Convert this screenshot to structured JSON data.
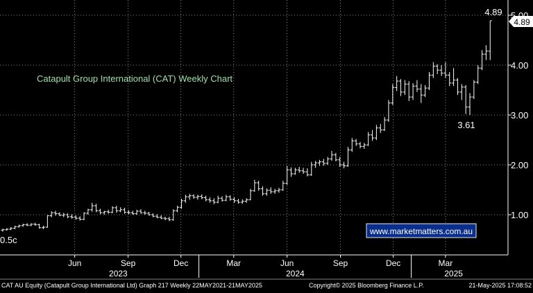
{
  "chart_data": {
    "type": "ohlc",
    "title": "Catapult Group International (CAT) Weekly Chart",
    "y_ticks": [
      "1.00",
      "2.00",
      "3.00",
      "4.00",
      "5.00"
    ],
    "y_tick_values": [
      1,
      2,
      3,
      4,
      5
    ],
    "ylim": [
      0.5,
      5.0
    ],
    "x_months": [
      {
        "label": "Jun",
        "date": "2023-06-01"
      },
      {
        "label": "Sep",
        "date": "2023-09-01"
      },
      {
        "label": "Dec",
        "date": "2023-12-01"
      },
      {
        "label": "Mar",
        "date": "2024-03-01"
      },
      {
        "label": "Jun",
        "date": "2024-06-01"
      },
      {
        "label": "Sep",
        "date": "2024-09-01"
      },
      {
        "label": "Dec",
        "date": "2024-12-01"
      },
      {
        "label": "Mar",
        "date": "2025-03-01"
      }
    ],
    "x_years": [
      {
        "label": "2023",
        "date": "2023-08-15"
      },
      {
        "label": "2024",
        "date": "2024-06-15"
      },
      {
        "label": "2025",
        "date": "2025-03-15"
      }
    ],
    "x_range": [
      "2023-01-28",
      "2025-06-12"
    ],
    "year_dividers": [
      "2024-01-01",
      "2025-01-01"
    ],
    "bar_color": "#ffffff",
    "grid": true,
    "grid_color": "#b0b0b0",
    "price_tag": "4.89",
    "series": [
      {
        "date": "2023-01-28",
        "o": 0.69,
        "h": 0.72,
        "l": 0.66,
        "c": 0.7
      },
      {
        "date": "2023-02-04",
        "o": 0.7,
        "h": 0.73,
        "l": 0.68,
        "c": 0.71
      },
      {
        "date": "2023-02-11",
        "o": 0.71,
        "h": 0.75,
        "l": 0.69,
        "c": 0.73
      },
      {
        "date": "2023-02-18",
        "o": 0.73,
        "h": 0.78,
        "l": 0.71,
        "c": 0.76
      },
      {
        "date": "2023-02-25",
        "o": 0.76,
        "h": 0.8,
        "l": 0.74,
        "c": 0.78
      },
      {
        "date": "2023-03-04",
        "o": 0.78,
        "h": 0.82,
        "l": 0.76,
        "c": 0.8
      },
      {
        "date": "2023-03-11",
        "o": 0.8,
        "h": 0.83,
        "l": 0.77,
        "c": 0.79
      },
      {
        "date": "2023-03-18",
        "o": 0.79,
        "h": 0.83,
        "l": 0.77,
        "c": 0.81
      },
      {
        "date": "2023-03-25",
        "o": 0.81,
        "h": 0.84,
        "l": 0.78,
        "c": 0.8
      },
      {
        "date": "2023-04-01",
        "o": 0.8,
        "h": 0.82,
        "l": 0.72,
        "c": 0.74
      },
      {
        "date": "2023-04-08",
        "o": 0.74,
        "h": 0.78,
        "l": 0.71,
        "c": 0.75
      },
      {
        "date": "2023-04-15",
        "o": 0.75,
        "h": 0.99,
        "l": 0.74,
        "c": 0.98
      },
      {
        "date": "2023-04-22",
        "o": 0.98,
        "h": 1.07,
        "l": 0.95,
        "c": 1.04
      },
      {
        "date": "2023-04-29",
        "o": 1.04,
        "h": 1.08,
        "l": 0.98,
        "c": 1.02
      },
      {
        "date": "2023-05-06",
        "o": 1.02,
        "h": 1.05,
        "l": 0.97,
        "c": 0.99
      },
      {
        "date": "2023-05-13",
        "o": 0.99,
        "h": 1.04,
        "l": 0.95,
        "c": 1.0
      },
      {
        "date": "2023-05-20",
        "o": 1.0,
        "h": 1.03,
        "l": 0.93,
        "c": 0.96
      },
      {
        "date": "2023-05-27",
        "o": 0.96,
        "h": 1.01,
        "l": 0.92,
        "c": 0.95
      },
      {
        "date": "2023-06-03",
        "o": 0.95,
        "h": 0.99,
        "l": 0.9,
        "c": 0.93
      },
      {
        "date": "2023-06-10",
        "o": 0.93,
        "h": 0.97,
        "l": 0.88,
        "c": 0.91
      },
      {
        "date": "2023-06-17",
        "o": 0.91,
        "h": 1.05,
        "l": 0.89,
        "c": 1.03
      },
      {
        "date": "2023-06-24",
        "o": 1.03,
        "h": 1.12,
        "l": 1.0,
        "c": 1.1
      },
      {
        "date": "2023-07-01",
        "o": 1.1,
        "h": 1.24,
        "l": 1.06,
        "c": 1.18
      },
      {
        "date": "2023-07-08",
        "o": 1.18,
        "h": 1.22,
        "l": 1.05,
        "c": 1.08
      },
      {
        "date": "2023-07-15",
        "o": 1.08,
        "h": 1.12,
        "l": 1.01,
        "c": 1.04
      },
      {
        "date": "2023-07-22",
        "o": 1.04,
        "h": 1.08,
        "l": 1.0,
        "c": 1.06
      },
      {
        "date": "2023-07-29",
        "o": 1.06,
        "h": 1.1,
        "l": 1.02,
        "c": 1.05
      },
      {
        "date": "2023-08-05",
        "o": 1.05,
        "h": 1.17,
        "l": 1.03,
        "c": 1.14
      },
      {
        "date": "2023-08-12",
        "o": 1.14,
        "h": 1.18,
        "l": 1.04,
        "c": 1.08
      },
      {
        "date": "2023-08-19",
        "o": 1.08,
        "h": 1.15,
        "l": 1.05,
        "c": 1.1
      },
      {
        "date": "2023-08-26",
        "o": 1.1,
        "h": 1.14,
        "l": 1.02,
        "c": 1.05
      },
      {
        "date": "2023-09-02",
        "o": 1.05,
        "h": 1.09,
        "l": 1.01,
        "c": 1.04
      },
      {
        "date": "2023-09-09",
        "o": 1.04,
        "h": 1.08,
        "l": 1.0,
        "c": 1.02
      },
      {
        "date": "2023-09-16",
        "o": 1.02,
        "h": 1.1,
        "l": 1.0,
        "c": 1.07
      },
      {
        "date": "2023-09-23",
        "o": 1.07,
        "h": 1.11,
        "l": 1.02,
        "c": 1.04
      },
      {
        "date": "2023-09-30",
        "o": 1.04,
        "h": 1.08,
        "l": 1.0,
        "c": 1.03
      },
      {
        "date": "2023-10-07",
        "o": 1.03,
        "h": 1.06,
        "l": 0.98,
        "c": 1.0
      },
      {
        "date": "2023-10-14",
        "o": 1.0,
        "h": 1.03,
        "l": 0.95,
        "c": 0.97
      },
      {
        "date": "2023-10-21",
        "o": 0.97,
        "h": 1.01,
        "l": 0.93,
        "c": 0.95
      },
      {
        "date": "2023-10-28",
        "o": 0.95,
        "h": 0.99,
        "l": 0.91,
        "c": 0.93
      },
      {
        "date": "2023-11-04",
        "o": 0.93,
        "h": 0.96,
        "l": 0.89,
        "c": 0.92
      },
      {
        "date": "2023-11-11",
        "o": 0.92,
        "h": 0.96,
        "l": 0.87,
        "c": 0.9
      },
      {
        "date": "2023-11-18",
        "o": 0.9,
        "h": 1.11,
        "l": 0.88,
        "c": 1.08
      },
      {
        "date": "2023-11-25",
        "o": 1.08,
        "h": 1.18,
        "l": 1.05,
        "c": 1.15
      },
      {
        "date": "2023-12-02",
        "o": 1.15,
        "h": 1.32,
        "l": 1.12,
        "c": 1.28
      },
      {
        "date": "2023-12-09",
        "o": 1.28,
        "h": 1.4,
        "l": 1.24,
        "c": 1.36
      },
      {
        "date": "2023-12-16",
        "o": 1.36,
        "h": 1.42,
        "l": 1.3,
        "c": 1.38
      },
      {
        "date": "2023-12-23",
        "o": 1.38,
        "h": 1.41,
        "l": 1.32,
        "c": 1.35
      },
      {
        "date": "2023-12-30",
        "o": 1.35,
        "h": 1.4,
        "l": 1.3,
        "c": 1.37
      },
      {
        "date": "2024-01-06",
        "o": 1.37,
        "h": 1.41,
        "l": 1.31,
        "c": 1.34
      },
      {
        "date": "2024-01-13",
        "o": 1.34,
        "h": 1.38,
        "l": 1.27,
        "c": 1.3
      },
      {
        "date": "2024-01-20",
        "o": 1.3,
        "h": 1.35,
        "l": 1.24,
        "c": 1.28
      },
      {
        "date": "2024-01-27",
        "o": 1.28,
        "h": 1.33,
        "l": 1.21,
        "c": 1.25
      },
      {
        "date": "2024-02-03",
        "o": 1.25,
        "h": 1.38,
        "l": 1.23,
        "c": 1.33
      },
      {
        "date": "2024-02-10",
        "o": 1.33,
        "h": 1.37,
        "l": 1.26,
        "c": 1.29
      },
      {
        "date": "2024-02-17",
        "o": 1.29,
        "h": 1.4,
        "l": 1.27,
        "c": 1.36
      },
      {
        "date": "2024-02-24",
        "o": 1.36,
        "h": 1.39,
        "l": 1.28,
        "c": 1.31
      },
      {
        "date": "2024-03-02",
        "o": 1.31,
        "h": 1.35,
        "l": 1.24,
        "c": 1.28
      },
      {
        "date": "2024-03-09",
        "o": 1.28,
        "h": 1.32,
        "l": 1.22,
        "c": 1.25
      },
      {
        "date": "2024-03-16",
        "o": 1.25,
        "h": 1.31,
        "l": 1.22,
        "c": 1.27
      },
      {
        "date": "2024-03-23",
        "o": 1.27,
        "h": 1.33,
        "l": 1.24,
        "c": 1.3
      },
      {
        "date": "2024-03-30",
        "o": 1.3,
        "h": 1.52,
        "l": 1.29,
        "c": 1.48
      },
      {
        "date": "2024-04-06",
        "o": 1.48,
        "h": 1.7,
        "l": 1.46,
        "c": 1.64
      },
      {
        "date": "2024-04-13",
        "o": 1.64,
        "h": 1.68,
        "l": 1.48,
        "c": 1.52
      },
      {
        "date": "2024-04-20",
        "o": 1.52,
        "h": 1.57,
        "l": 1.38,
        "c": 1.42
      },
      {
        "date": "2024-04-27",
        "o": 1.42,
        "h": 1.53,
        "l": 1.38,
        "c": 1.49
      },
      {
        "date": "2024-05-04",
        "o": 1.49,
        "h": 1.55,
        "l": 1.42,
        "c": 1.46
      },
      {
        "date": "2024-05-11",
        "o": 1.46,
        "h": 1.52,
        "l": 1.42,
        "c": 1.48
      },
      {
        "date": "2024-05-18",
        "o": 1.48,
        "h": 1.54,
        "l": 1.44,
        "c": 1.5
      },
      {
        "date": "2024-05-25",
        "o": 1.5,
        "h": 1.68,
        "l": 1.48,
        "c": 1.63
      },
      {
        "date": "2024-06-01",
        "o": 1.63,
        "h": 1.98,
        "l": 1.6,
        "c": 1.9
      },
      {
        "date": "2024-06-08",
        "o": 1.9,
        "h": 1.95,
        "l": 1.76,
        "c": 1.82
      },
      {
        "date": "2024-06-15",
        "o": 1.82,
        "h": 1.94,
        "l": 1.8,
        "c": 1.9
      },
      {
        "date": "2024-06-22",
        "o": 1.9,
        "h": 1.96,
        "l": 1.84,
        "c": 1.88
      },
      {
        "date": "2024-06-29",
        "o": 1.88,
        "h": 1.94,
        "l": 1.82,
        "c": 1.86
      },
      {
        "date": "2024-07-06",
        "o": 1.86,
        "h": 1.93,
        "l": 1.77,
        "c": 1.8
      },
      {
        "date": "2024-07-13",
        "o": 1.8,
        "h": 2.06,
        "l": 1.78,
        "c": 2.0
      },
      {
        "date": "2024-07-20",
        "o": 2.0,
        "h": 2.08,
        "l": 1.94,
        "c": 2.04
      },
      {
        "date": "2024-07-27",
        "o": 2.04,
        "h": 2.1,
        "l": 1.98,
        "c": 2.06
      },
      {
        "date": "2024-08-03",
        "o": 2.06,
        "h": 2.12,
        "l": 1.98,
        "c": 2.03
      },
      {
        "date": "2024-08-10",
        "o": 2.03,
        "h": 2.16,
        "l": 2.0,
        "c": 2.12
      },
      {
        "date": "2024-08-17",
        "o": 2.12,
        "h": 2.28,
        "l": 2.08,
        "c": 2.2
      },
      {
        "date": "2024-08-24",
        "o": 2.2,
        "h": 2.24,
        "l": 2.07,
        "c": 2.1
      },
      {
        "date": "2024-08-31",
        "o": 2.1,
        "h": 2.16,
        "l": 1.96,
        "c": 2.0
      },
      {
        "date": "2024-09-07",
        "o": 2.0,
        "h": 2.06,
        "l": 1.93,
        "c": 1.98
      },
      {
        "date": "2024-09-14",
        "o": 1.98,
        "h": 2.36,
        "l": 1.96,
        "c": 2.3
      },
      {
        "date": "2024-09-21",
        "o": 2.3,
        "h": 2.54,
        "l": 2.26,
        "c": 2.48
      },
      {
        "date": "2024-09-28",
        "o": 2.48,
        "h": 2.52,
        "l": 2.38,
        "c": 2.42
      },
      {
        "date": "2024-10-05",
        "o": 2.42,
        "h": 2.46,
        "l": 2.33,
        "c": 2.37
      },
      {
        "date": "2024-10-12",
        "o": 2.37,
        "h": 2.44,
        "l": 2.32,
        "c": 2.4
      },
      {
        "date": "2024-10-19",
        "o": 2.4,
        "h": 2.66,
        "l": 2.38,
        "c": 2.6
      },
      {
        "date": "2024-10-26",
        "o": 2.6,
        "h": 2.7,
        "l": 2.48,
        "c": 2.54
      },
      {
        "date": "2024-11-02",
        "o": 2.54,
        "h": 2.8,
        "l": 2.5,
        "c": 2.74
      },
      {
        "date": "2024-11-09",
        "o": 2.74,
        "h": 2.82,
        "l": 2.64,
        "c": 2.7
      },
      {
        "date": "2024-11-16",
        "o": 2.7,
        "h": 2.96,
        "l": 2.68,
        "c": 2.9
      },
      {
        "date": "2024-11-23",
        "o": 2.9,
        "h": 3.3,
        "l": 2.86,
        "c": 3.24
      },
      {
        "date": "2024-11-30",
        "o": 3.24,
        "h": 3.62,
        "l": 3.2,
        "c": 3.55
      },
      {
        "date": "2024-12-07",
        "o": 3.55,
        "h": 3.78,
        "l": 3.48,
        "c": 3.68
      },
      {
        "date": "2024-12-14",
        "o": 3.68,
        "h": 3.72,
        "l": 3.38,
        "c": 3.46
      },
      {
        "date": "2024-12-21",
        "o": 3.46,
        "h": 3.7,
        "l": 3.4,
        "c": 3.62
      },
      {
        "date": "2024-12-28",
        "o": 3.62,
        "h": 3.68,
        "l": 3.28,
        "c": 3.36
      },
      {
        "date": "2025-01-04",
        "o": 3.36,
        "h": 3.64,
        "l": 3.3,
        "c": 3.58
      },
      {
        "date": "2025-01-11",
        "o": 3.58,
        "h": 3.7,
        "l": 3.46,
        "c": 3.52
      },
      {
        "date": "2025-01-18",
        "o": 3.52,
        "h": 3.62,
        "l": 3.24,
        "c": 3.4
      },
      {
        "date": "2025-01-25",
        "o": 3.4,
        "h": 3.6,
        "l": 3.36,
        "c": 3.54
      },
      {
        "date": "2025-02-01",
        "o": 3.54,
        "h": 3.86,
        "l": 3.5,
        "c": 3.8
      },
      {
        "date": "2025-02-08",
        "o": 3.8,
        "h": 4.06,
        "l": 3.74,
        "c": 3.98
      },
      {
        "date": "2025-02-15",
        "o": 3.98,
        "h": 4.02,
        "l": 3.82,
        "c": 3.9
      },
      {
        "date": "2025-02-22",
        "o": 3.9,
        "h": 4.0,
        "l": 3.78,
        "c": 3.84
      },
      {
        "date": "2025-03-01",
        "o": 3.84,
        "h": 4.06,
        "l": 3.74,
        "c": 3.8
      },
      {
        "date": "2025-03-08",
        "o": 3.8,
        "h": 3.86,
        "l": 3.58,
        "c": 3.64
      },
      {
        "date": "2025-03-15",
        "o": 3.64,
        "h": 3.94,
        "l": 3.58,
        "c": 3.7
      },
      {
        "date": "2025-03-22",
        "o": 3.7,
        "h": 3.74,
        "l": 3.4,
        "c": 3.46
      },
      {
        "date": "2025-03-29",
        "o": 3.46,
        "h": 3.62,
        "l": 3.3,
        "c": 3.56
      },
      {
        "date": "2025-04-05",
        "o": 3.56,
        "h": 3.6,
        "l": 3.02,
        "c": 3.16
      },
      {
        "date": "2025-04-12",
        "o": 3.16,
        "h": 3.44,
        "l": 3.0,
        "c": 3.36
      },
      {
        "date": "2025-04-19",
        "o": 3.36,
        "h": 3.7,
        "l": 3.32,
        "c": 3.66
      },
      {
        "date": "2025-04-26",
        "o": 3.66,
        "h": 4.0,
        "l": 3.62,
        "c": 3.94
      },
      {
        "date": "2025-05-03",
        "o": 3.94,
        "h": 4.3,
        "l": 3.9,
        "c": 4.22
      },
      {
        "date": "2025-05-10",
        "o": 4.22,
        "h": 4.4,
        "l": 4.1,
        "c": 4.28
      },
      {
        "date": "2025-05-17",
        "o": 4.28,
        "h": 4.89,
        "l": 4.1,
        "c": 4.89
      }
    ]
  },
  "annotations": {
    "last_price": "4.89",
    "low_label": "3.61",
    "start_label": "0.5c"
  },
  "watermark": "www.marketmatters.com.au",
  "footer": {
    "left": "CAT AU Equity (Catapult Group International Ltd) Graph 217  Weekly 22MAY2021-21MAY2025",
    "center": "Copyright© 2025 Bloomberg Finance L.P.",
    "right": "21-May-2025 17:08:52"
  },
  "colors": {
    "background": "#000000",
    "title_text": "#9fe0a8",
    "watermark_bg": "#0a2e8c",
    "price_tag_bg": "#ffffff"
  }
}
